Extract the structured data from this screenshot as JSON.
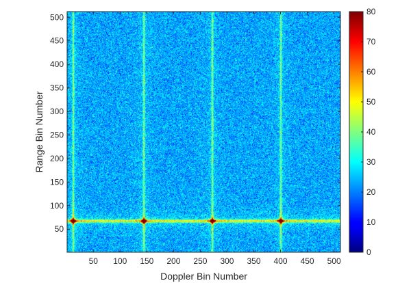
{
  "chart_data": {
    "type": "heatmap",
    "title": "",
    "xlabel": "Doppler Bin Number",
    "ylabel": "Range Bin Number",
    "xlim": [
      1,
      512
    ],
    "ylim": [
      1,
      512
    ],
    "xticks": [
      50,
      100,
      150,
      200,
      250,
      300,
      350,
      400,
      450,
      500
    ],
    "yticks": [
      50,
      100,
      150,
      200,
      250,
      300,
      350,
      400,
      450,
      500
    ],
    "colorbar": {
      "colormap": "jet",
      "range": [
        0,
        80
      ],
      "ticks": [
        0,
        10,
        20,
        30,
        40,
        50,
        60,
        70,
        80
      ]
    },
    "background_level": 23,
    "noise_spread": 5,
    "targets": [
      {
        "doppler_bin": 12,
        "range_bin": 68,
        "peak": 80
      },
      {
        "doppler_bin": 144,
        "range_bin": 68,
        "peak": 80
      },
      {
        "doppler_bin": 272,
        "range_bin": 68,
        "peak": 80
      },
      {
        "doppler_bin": 400,
        "range_bin": 68,
        "peak": 80
      }
    ],
    "range_ridge": {
      "range_bin": 68,
      "level": 45
    },
    "doppler_ridge_level": 38
  },
  "colors": {
    "axis": "#262626",
    "background": "#ffffff"
  }
}
